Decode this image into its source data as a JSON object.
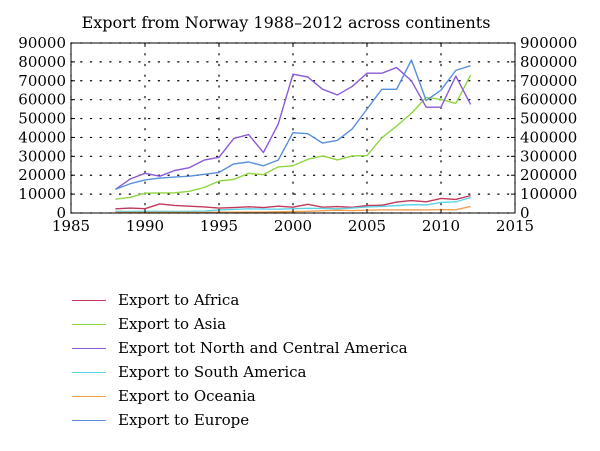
{
  "chart_data": {
    "type": "line",
    "title": "Export from Norway 1988–2012 across continents",
    "xlabel": "",
    "ylabel": "",
    "xlim": [
      1985,
      2015
    ],
    "ylim": [
      0,
      90000
    ],
    "y2lim": [
      0,
      900000
    ],
    "xticks": [
      "1985",
      "1990",
      "1995",
      "2000",
      "2005",
      "2010",
      "2015"
    ],
    "yticks": [
      "0",
      "10000",
      "20000",
      "30000",
      "40000",
      "50000",
      "60000",
      "70000",
      "80000",
      "90000"
    ],
    "y2ticks": [
      "0",
      "100000",
      "200000",
      "300000",
      "400000",
      "500000",
      "600000",
      "700000",
      "800000",
      "900000"
    ],
    "grid": true,
    "legend_position": "below",
    "x": [
      1988,
      1989,
      1990,
      1991,
      1992,
      1993,
      1994,
      1995,
      1996,
      1997,
      1998,
      1999,
      2000,
      2001,
      2002,
      2003,
      2004,
      2005,
      2006,
      2007,
      2008,
      2009,
      2010,
      2011,
      2012
    ],
    "series": [
      {
        "name": "Export to Africa",
        "color": "#c0395a",
        "axis": "left",
        "values": [
          2200,
          2600,
          2300,
          4800,
          4000,
          3600,
          3200,
          2600,
          2900,
          3300,
          2900,
          3600,
          3100,
          4600,
          3100,
          3400,
          3000,
          3900,
          4100,
          5800,
          6600,
          5900,
          7700,
          7200,
          9200
        ]
      },
      {
        "name": "Export to Asia",
        "color": "#8fd640",
        "axis": "left",
        "values": [
          7300,
          8300,
          10500,
          10600,
          10700,
          11500,
          13500,
          16900,
          17800,
          21000,
          20300,
          24400,
          25000,
          28400,
          30200,
          28100,
          30200,
          30400,
          39800,
          46000,
          52800,
          61200,
          60100,
          58000,
          73000
        ]
      },
      {
        "name": "Export tot North and Central America",
        "color": "#8b5ad6",
        "axis": "left",
        "values": [
          12500,
          18000,
          21000,
          19500,
          22500,
          24000,
          28000,
          29500,
          39500,
          41500,
          32000,
          47000,
          73500,
          72000,
          65500,
          62500,
          67000,
          74000,
          74000,
          77000,
          70000,
          56000,
          56000,
          72500,
          57500
        ]
      },
      {
        "name": "Export to South America",
        "color": "#5fd3e6",
        "axis": "left",
        "values": [
          900,
          800,
          900,
          900,
          800,
          900,
          1000,
          1600,
          1900,
          2200,
          2100,
          2000,
          2300,
          2500,
          2400,
          2200,
          2600,
          3200,
          3500,
          3900,
          4400,
          4300,
          5600,
          5900,
          8200
        ]
      },
      {
        "name": "Export to Oceania",
        "color": "#f0a050",
        "axis": "left",
        "values": [
          300,
          300,
          300,
          300,
          300,
          300,
          300,
          400,
          400,
          500,
          500,
          600,
          800,
          900,
          1200,
          1500,
          1300,
          1500,
          1700,
          1600,
          1700,
          1600,
          1800,
          1700,
          3500
        ]
      },
      {
        "name": "Export to Europe",
        "color": "#5a8fdc",
        "axis": "right",
        "values": [
          125000,
          155000,
          175000,
          185000,
          190000,
          195000,
          205000,
          215000,
          260000,
          270000,
          250000,
          280000,
          425000,
          420000,
          370000,
          385000,
          445000,
          550000,
          655000,
          655000,
          810000,
          595000,
          650000,
          755000,
          780000
        ]
      }
    ]
  }
}
